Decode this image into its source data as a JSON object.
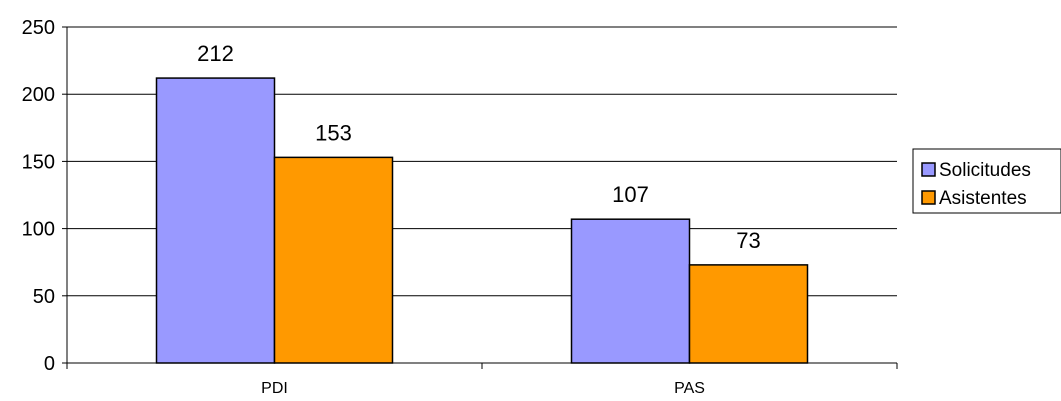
{
  "chart_data": {
    "type": "bar",
    "categories": [
      "PDI",
      "PAS"
    ],
    "series": [
      {
        "name": "Solicitudes",
        "values": [
          212,
          107
        ],
        "color": "#9999ff"
      },
      {
        "name": "Asistentes",
        "values": [
          153,
          73
        ],
        "color": "#ff9900"
      }
    ],
    "title": "",
    "xlabel": "",
    "ylabel": "",
    "ylim": [
      0,
      250
    ],
    "yticks": [
      0,
      50,
      100,
      150,
      200,
      250
    ],
    "grid": true,
    "legend_position": "right"
  }
}
